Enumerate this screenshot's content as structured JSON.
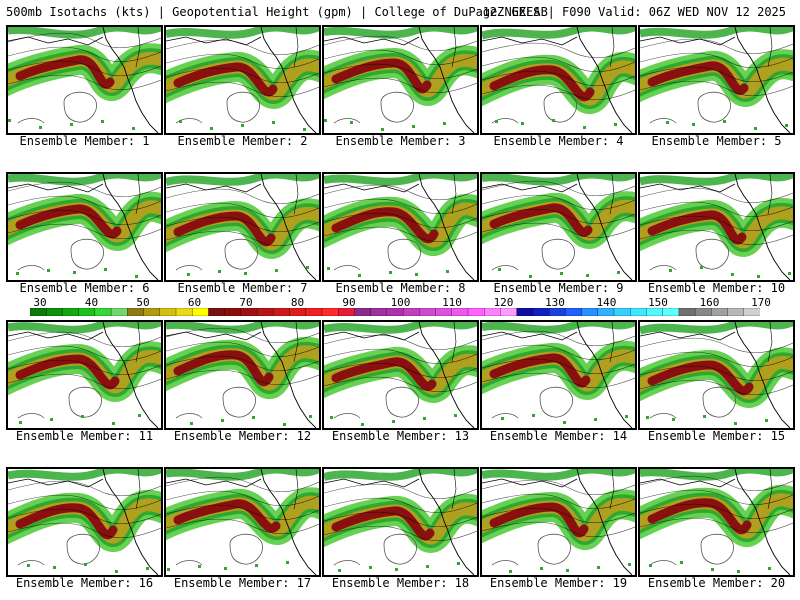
{
  "header": {
    "left_text": "500mb Isotachs (kts) | Geopotential Height (gpm) | College of DuPage NEXLAB",
    "right_text": "12Z GEFS | F090 Valid: 06Z WED NOV 12 2025"
  },
  "colorbar": {
    "labels": [
      "30",
      "40",
      "50",
      "60",
      "70",
      "80",
      "90",
      "100",
      "110",
      "120",
      "130",
      "140",
      "150",
      "160",
      "170"
    ],
    "colors": [
      "#0a7a0a",
      "#0e8f0e",
      "#12a812",
      "#1cc21c",
      "#34d834",
      "#6ed86e",
      "#8e7a12",
      "#b09a10",
      "#d4c010",
      "#e8d818",
      "#ffff00",
      "#7a1010",
      "#8c0c0c",
      "#a01010",
      "#b81414",
      "#cc1a1a",
      "#e01c1c",
      "#f02020",
      "#ff2a2a",
      "#e81a38",
      "#8a2a8a",
      "#a030a0",
      "#b030b0",
      "#c040c0",
      "#d04ad0",
      "#e050e0",
      "#ee58ee",
      "#ff60ff",
      "#ff80ff",
      "#ff9aff",
      "#1010a0",
      "#1020c0",
      "#1a40e0",
      "#2060ff",
      "#2a90ff",
      "#30b0ff",
      "#38d0ff",
      "#40e8ff",
      "#50f8ff",
      "#60ffff",
      "#707070",
      "#888888",
      "#a0a0a0",
      "#b8b8b8",
      "#d0d0d0"
    ]
  },
  "members": [
    {
      "caption": "Ensemble Member: 1"
    },
    {
      "caption": "Ensemble Member: 2"
    },
    {
      "caption": "Ensemble Member: 3"
    },
    {
      "caption": "Ensemble Member: 4"
    },
    {
      "caption": "Ensemble Member: 5"
    },
    {
      "caption": "Ensemble Member: 6"
    },
    {
      "caption": "Ensemble Member: 7"
    },
    {
      "caption": "Ensemble Member: 8"
    },
    {
      "caption": "Ensemble Member: 9"
    },
    {
      "caption": "Ensemble Member: 10"
    },
    {
      "caption": "Ensemble Member: 11"
    },
    {
      "caption": "Ensemble Member: 12"
    },
    {
      "caption": "Ensemble Member: 13"
    },
    {
      "caption": "Ensemble Member: 14"
    },
    {
      "caption": "Ensemble Member: 15"
    },
    {
      "caption": "Ensemble Member: 16"
    },
    {
      "caption": "Ensemble Member: 17"
    },
    {
      "caption": "Ensemble Member: 18"
    },
    {
      "caption": "Ensemble Member: 19"
    },
    {
      "caption": "Ensemble Member: 20"
    }
  ],
  "palette": {
    "jet_green": "#2ea82e",
    "jet_lightgreen": "#5ecf4a",
    "jet_olive": "#b0a020",
    "jet_core": "#8a1010",
    "coast": "#000000",
    "height_contour": "#555555"
  }
}
